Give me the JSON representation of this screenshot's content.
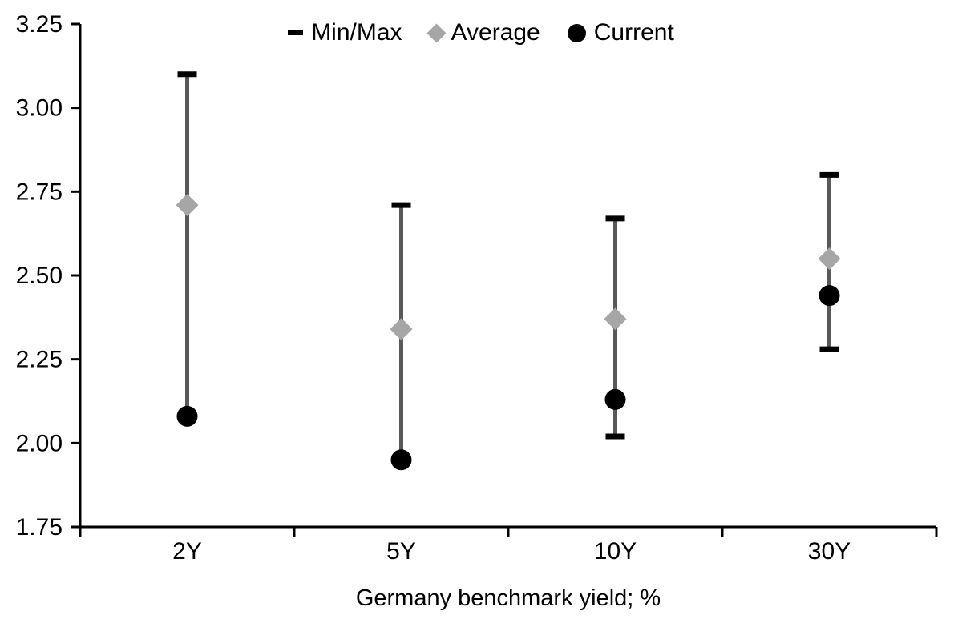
{
  "chart_data": {
    "type": "range-dot",
    "title": "",
    "xlabel": "Germany benchmark yield; %",
    "ylabel": "",
    "categories": [
      "2Y",
      "5Y",
      "10Y",
      "30Y"
    ],
    "y_ticks": [
      "1.75",
      "2.00",
      "2.25",
      "2.50",
      "2.75",
      "3.00",
      "3.25"
    ],
    "ylim": [
      1.75,
      3.25
    ],
    "grid": false,
    "legend_position": "top-center",
    "series": [
      {
        "name": "Min/Max",
        "marker": "dash",
        "min": [
          2.08,
          1.95,
          2.02,
          2.28
        ],
        "max": [
          3.1,
          2.71,
          2.67,
          2.8
        ]
      },
      {
        "name": "Average",
        "marker": "diamond",
        "values": [
          2.71,
          2.34,
          2.37,
          2.55
        ]
      },
      {
        "name": "Current",
        "marker": "circle",
        "values": [
          2.08,
          1.95,
          2.13,
          2.44
        ]
      }
    ],
    "colors": {
      "range_line": "#595959",
      "cap": "#000000",
      "average": "#a6a6a6",
      "current": "#000000",
      "axis": "#000000",
      "text": "#000000",
      "background": "#ffffff"
    }
  }
}
